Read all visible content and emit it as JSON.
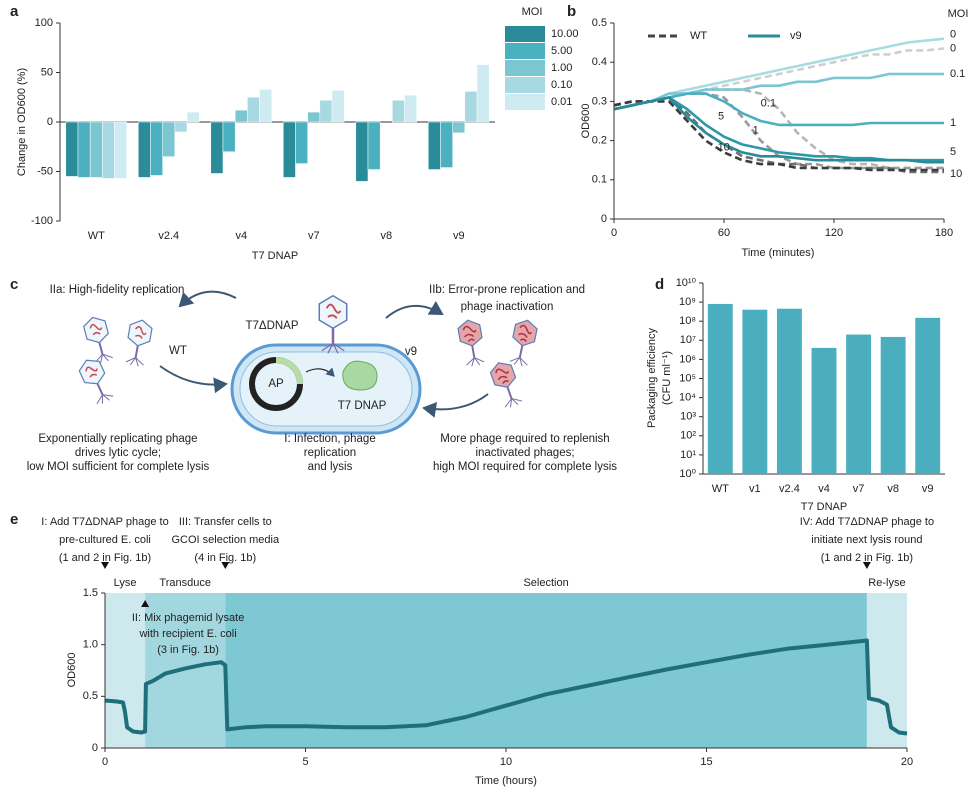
{
  "chart_data": [
    {
      "panel": "a",
      "type": "bar",
      "ylabel": "Change in OD600 (%)",
      "xlabel": "T7 DNAP",
      "categories": [
        "WT",
        "v2.4",
        "v4",
        "v7",
        "v8",
        "v9"
      ],
      "legend_title": "MOI",
      "series": [
        {
          "name": "10.00",
          "color": "#2b8c99",
          "values": [
            -55,
            -56,
            -52,
            -56,
            -60,
            -48
          ]
        },
        {
          "name": "5.00",
          "color": "#4bb0bf",
          "values": [
            -56,
            -54,
            -30,
            -42,
            -48,
            -46
          ]
        },
        {
          "name": "1.00",
          "color": "#7cc6d1",
          "values": [
            -56,
            -35,
            12,
            10,
            0,
            -11
          ]
        },
        {
          "name": "0.10",
          "color": "#a6d9e1",
          "values": [
            -57,
            -10,
            25,
            22,
            22,
            31
          ]
        },
        {
          "name": "0.01",
          "color": "#cdebf0",
          "values": [
            -57,
            10,
            33,
            32,
            27,
            58
          ]
        }
      ],
      "ylim": [
        -100,
        100
      ],
      "yticks": [
        -100,
        -50,
        0,
        50,
        100
      ],
      "grid": false
    },
    {
      "panel": "b",
      "type": "line",
      "ylabel": "OD600",
      "xlabel": "Time (minutes)",
      "label_title": "MOI",
      "legend": [
        {
          "name": "WT",
          "color": "#444444",
          "dashed": true
        },
        {
          "name": "v9",
          "color": "#2b8c99",
          "dashed": false
        }
      ],
      "x": [
        0,
        10,
        20,
        30,
        40,
        50,
        60,
        70,
        80,
        90,
        100,
        110,
        120,
        130,
        140,
        150,
        160,
        170,
        180
      ],
      "series": [
        {
          "name": "0",
          "color": "#cfcfcf",
          "dashed": true,
          "values": [
            0.29,
            0.3,
            0.3,
            0.31,
            0.32,
            0.33,
            0.34,
            0.35,
            0.36,
            0.37,
            0.38,
            0.39,
            0.4,
            0.41,
            0.42,
            0.42,
            0.43,
            0.43,
            0.435
          ]
        },
        {
          "name": "0.1",
          "color": "#b5b5b5",
          "dashed": true,
          "values": [
            0.29,
            0.3,
            0.3,
            0.31,
            0.32,
            0.33,
            0.33,
            0.33,
            0.32,
            0.28,
            0.22,
            0.18,
            0.15,
            0.14,
            0.14,
            0.13,
            0.13,
            0.13,
            0.13
          ]
        },
        {
          "name": "1",
          "color": "#9a9a9a",
          "dashed": true,
          "values": [
            0.29,
            0.3,
            0.3,
            0.31,
            0.32,
            0.32,
            0.31,
            0.26,
            0.2,
            0.16,
            0.14,
            0.14,
            0.13,
            0.13,
            0.13,
            0.13,
            0.13,
            0.13,
            0.13
          ]
        },
        {
          "name": "5",
          "color": "#6e6e6e",
          "dashed": true,
          "values": [
            0.29,
            0.3,
            0.3,
            0.31,
            0.27,
            0.22,
            0.19,
            0.16,
            0.15,
            0.14,
            0.14,
            0.13,
            0.13,
            0.13,
            0.13,
            0.13,
            0.12,
            0.12,
            0.12
          ]
        },
        {
          "name": "10",
          "color": "#3c3c3c",
          "dashed": true,
          "values": [
            0.29,
            0.3,
            0.3,
            0.3,
            0.25,
            0.2,
            0.17,
            0.15,
            0.14,
            0.14,
            0.13,
            0.13,
            0.13,
            0.13,
            0.125,
            0.125,
            0.125,
            0.125,
            0.125
          ]
        },
        {
          "name": "0",
          "color": "#a8dce4",
          "dashed": false,
          "values": [
            0.28,
            0.29,
            0.3,
            0.32,
            0.33,
            0.34,
            0.35,
            0.36,
            0.37,
            0.38,
            0.39,
            0.4,
            0.41,
            0.42,
            0.43,
            0.44,
            0.45,
            0.455,
            0.46
          ]
        },
        {
          "name": "0.1",
          "color": "#7cc6d1",
          "dashed": false,
          "values": [
            0.28,
            0.29,
            0.3,
            0.32,
            0.32,
            0.33,
            0.33,
            0.33,
            0.34,
            0.34,
            0.35,
            0.35,
            0.36,
            0.36,
            0.36,
            0.37,
            0.37,
            0.37,
            0.37
          ]
        },
        {
          "name": "1",
          "color": "#4bb0bf",
          "dashed": false,
          "values": [
            0.28,
            0.29,
            0.3,
            0.31,
            0.32,
            0.32,
            0.3,
            0.27,
            0.25,
            0.24,
            0.24,
            0.24,
            0.24,
            0.24,
            0.245,
            0.245,
            0.245,
            0.245,
            0.245
          ]
        },
        {
          "name": "5",
          "color": "#2a9aa8",
          "dashed": false,
          "values": [
            0.28,
            0.29,
            0.3,
            0.31,
            0.28,
            0.24,
            0.21,
            0.19,
            0.18,
            0.17,
            0.165,
            0.16,
            0.16,
            0.155,
            0.155,
            0.15,
            0.15,
            0.15,
            0.15
          ]
        },
        {
          "name": "10",
          "color": "#2a8a96",
          "dashed": false,
          "values": [
            0.28,
            0.29,
            0.3,
            0.31,
            0.26,
            0.22,
            0.19,
            0.17,
            0.16,
            0.16,
            0.155,
            0.15,
            0.15,
            0.15,
            0.15,
            0.15,
            0.15,
            0.145,
            0.145
          ]
        }
      ],
      "xlim": [
        0,
        180
      ],
      "xticks": [
        0,
        60,
        120,
        180
      ],
      "ylim": [
        0,
        0.5
      ],
      "yticks": [
        0,
        0.1,
        0.2,
        0.3,
        0.4,
        0.5
      ],
      "grid": false
    },
    {
      "panel": "d",
      "type": "bar",
      "log_scale": true,
      "ylabel": [
        "Packaging efficiency",
        "(CFU ml⁻¹)"
      ],
      "xlabel": "T7 DNAP",
      "categories": [
        "WT",
        "v1",
        "v2.4",
        "v4",
        "v7",
        "v8",
        "v9"
      ],
      "values": [
        800000000,
        400000000,
        450000000,
        4000000,
        20000000,
        15000000,
        150000000
      ],
      "color": "#4aaebf",
      "ylim": [
        1,
        10000000000
      ],
      "yticks": [
        {
          "value": 1,
          "label": "10⁰"
        },
        {
          "value": 10,
          "label": "10¹"
        },
        {
          "value": 100,
          "label": "10²"
        },
        {
          "value": 1000,
          "label": "10³"
        },
        {
          "value": 10000,
          "label": "10⁴"
        },
        {
          "value": 100000,
          "label": "10⁵"
        },
        {
          "value": 1000000,
          "label": "10⁶"
        },
        {
          "value": 10000000,
          "label": "10⁷"
        },
        {
          "value": 100000000,
          "label": "10⁸"
        },
        {
          "value": 1000000000,
          "label": "10⁹"
        },
        {
          "value": 10000000000,
          "label": "10¹⁰"
        }
      ],
      "grid": false
    },
    {
      "panel": "e",
      "type": "line",
      "ylabel": "OD600",
      "xlabel": "Time (hours)",
      "x": [
        0,
        0.3,
        0.45,
        0.5,
        0.55,
        0.7,
        0.9,
        1,
        1.02,
        1.2,
        1.5,
        2,
        2.5,
        2.9,
        3,
        3.05,
        3.5,
        4,
        5,
        6,
        7,
        8,
        9,
        10,
        11,
        12,
        13,
        14,
        15,
        16,
        17,
        18,
        19,
        19.05,
        19.3,
        19.5,
        19.6,
        19.8,
        20
      ],
      "series": [
        {
          "color": "#1f6f7a",
          "dashed": false,
          "values": [
            0.46,
            0.45,
            0.44,
            0.35,
            0.2,
            0.16,
            0.15,
            0.16,
            0.62,
            0.65,
            0.72,
            0.77,
            0.81,
            0.83,
            0.8,
            0.18,
            0.2,
            0.21,
            0.21,
            0.2,
            0.2,
            0.22,
            0.3,
            0.41,
            0.52,
            0.6,
            0.68,
            0.76,
            0.83,
            0.9,
            0.96,
            1.0,
            1.04,
            0.48,
            0.46,
            0.42,
            0.2,
            0.15,
            0.14
          ]
        }
      ],
      "regions": [
        {
          "label": "Lyse",
          "start": 0,
          "end": 1,
          "color": "#cde9ee"
        },
        {
          "label": "Transduce",
          "start": 1,
          "end": 3,
          "color": "#a3d7df"
        },
        {
          "label": "Selection",
          "start": 3,
          "end": 19,
          "color": "#7ec8d3"
        },
        {
          "label": "Re-lyse",
          "start": 19,
          "end": 20,
          "color": "#cde9ee"
        }
      ],
      "annotations": [
        {
          "x": 0,
          "marker": "down",
          "lines": [
            "I: Add T7ΔDNAP phage to",
            "pre-cultured E. coli",
            "(1 and 2 in Fig. 1b)"
          ]
        },
        {
          "x": 3,
          "marker": "down",
          "lines": [
            "III: Transfer cells to",
            "GCOI selection media",
            "(4 in Fig. 1b)"
          ]
        },
        {
          "x": 19,
          "marker": "down",
          "lines": [
            "IV: Add T7ΔDNAP phage to",
            "initiate next lysis round",
            "(1 and 2 in Fig. 1b)"
          ]
        },
        {
          "x": 1,
          "marker": "up",
          "lines": [
            "II: Mix phagemid lysate",
            "with recipient E. coli",
            "(3 in Fig. 1b)"
          ]
        }
      ],
      "xlim": [
        0,
        20
      ],
      "xticks": [
        0,
        5,
        10,
        15,
        20
      ],
      "ylim": [
        0,
        1.5
      ],
      "yticks": [
        0,
        0.5,
        {
          "value": 1,
          "label": "1.0"
        },
        1.5
      ],
      "grid": false
    }
  ],
  "diagram": {
    "panel": "c",
    "left_title": "IIa: High-fidelity replication",
    "right_title": [
      "IIb: Error-prone replication and",
      "phage inactivation"
    ],
    "phage_label": "T7ΔDNAP",
    "left_strain": "WT",
    "right_strain": "v9",
    "circuit_label": "AP",
    "protein_label": "T7 DNAP",
    "left_caption": [
      "Exponentially replicating phage",
      "drives lytic cycle;",
      "low MOI sufficient for complete lysis"
    ],
    "center_caption": [
      "I: Infection, phage",
      "replication",
      "and lysis"
    ],
    "right_caption": [
      "More phage required to replenish",
      "inactivated phages;",
      "high MOI required for complete lysis"
    ]
  }
}
